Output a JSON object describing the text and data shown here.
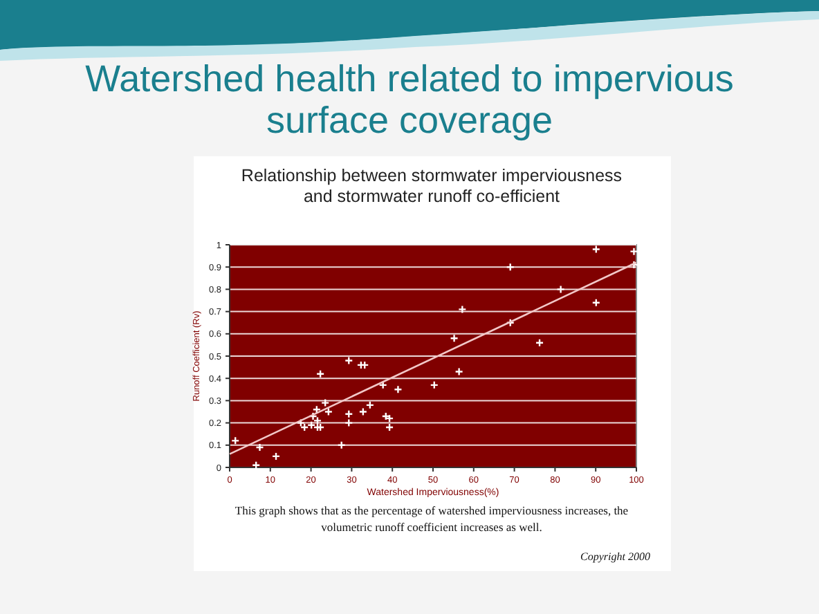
{
  "chart_data": {
    "type": "scatter",
    "title": "Watershed health related to impervious surface coverage",
    "subtitle": "Relationship between stormwater imperviousness and stormwater runoff co-efficient",
    "xlabel": "Watershed Imperviousness(%)",
    "ylabel": "Runoff Coefficient (Rv)",
    "xlim": [
      0,
      100
    ],
    "ylim": [
      0,
      1
    ],
    "xticks": [
      0,
      10,
      20,
      30,
      40,
      50,
      60,
      70,
      80,
      90,
      100
    ],
    "yticks": [
      0,
      0.1,
      0.2,
      0.3,
      0.4,
      0.5,
      0.6,
      0.7,
      0.8,
      0.9,
      1
    ],
    "grid": "y",
    "series": [
      {
        "marker": "cross",
        "color": "#ffffff",
        "x": [
          1.4,
          6.5,
          7.4,
          11.4,
          17.5,
          18.4,
          20.1,
          20.5,
          21.4,
          21.6,
          21.6,
          22.3,
          22.3,
          23.5,
          24.3,
          27.5,
          29.3,
          29.3,
          29.3,
          32.3,
          33.2,
          32.8,
          34.5,
          37.7,
          38.4,
          39.3,
          39.3,
          41.4,
          50.3,
          55.2,
          56.4,
          57.2,
          69,
          69,
          76.2,
          81.4,
          90.1,
          90.1,
          99.4,
          99.4
        ],
        "values": [
          0.12,
          0.01,
          0.09,
          0.05,
          0.2,
          0.18,
          0.19,
          0.23,
          0.26,
          0.21,
          0.18,
          0.18,
          0.42,
          0.29,
          0.25,
          0.1,
          0.48,
          0.24,
          0.2,
          0.46,
          0.46,
          0.25,
          0.28,
          0.37,
          0.23,
          0.22,
          0.18,
          0.35,
          0.37,
          0.58,
          0.43,
          0.71,
          0.65,
          0.9,
          0.56,
          0.8,
          0.98,
          0.74,
          0.97,
          0.91
        ]
      },
      {
        "type": "line",
        "color": "#f2c8c8",
        "x": [
          0,
          100
        ],
        "values": [
          0.06,
          0.92
        ]
      }
    ],
    "annotations": [
      "This graph shows that as the percentage of watershed imperviousness increases, the volumetric runoff coefficient increases as well.",
      "Copyright 2000"
    ]
  }
}
